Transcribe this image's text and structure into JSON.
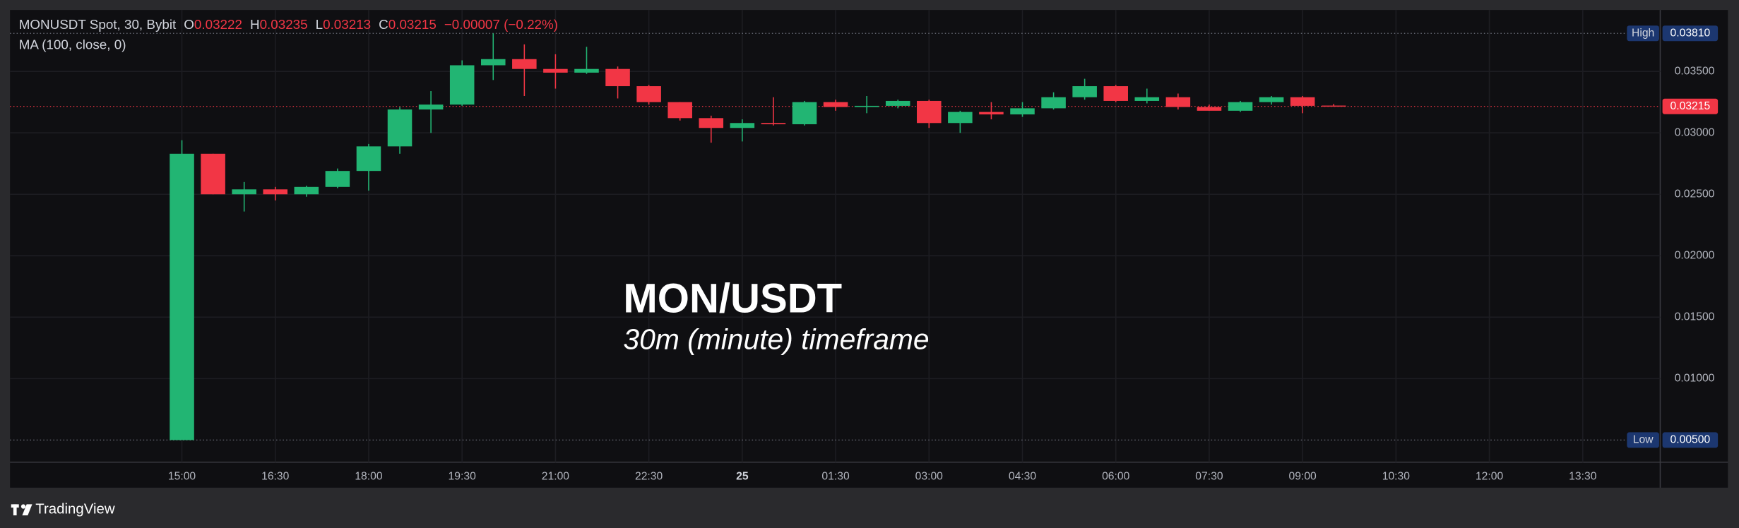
{
  "chart_data": {
    "type": "candlestick",
    "header": {
      "symbol": "MONUSDT Spot, 30, Bybit",
      "ohlc": [
        {
          "label": "O",
          "value": "0.03222"
        },
        {
          "label": "H",
          "value": "0.03235"
        },
        {
          "label": "L",
          "value": "0.03213"
        },
        {
          "label": "C",
          "value": "0.03215"
        }
      ],
      "change": "−0.00007 (−0.22%)",
      "indicator": "MA (100, close, 0)"
    },
    "annotation": {
      "title": "MON/USDT",
      "subtitle": "30m (minute) timeframe"
    },
    "xticks": [
      "15:00",
      "16:30",
      "18:00",
      "19:30",
      "21:00",
      "22:30",
      "25",
      "01:30",
      "03:00",
      "04:30",
      "06:00",
      "07:30",
      "09:00",
      "10:30",
      "12:00",
      "13:30"
    ],
    "series": {
      "open": [
        0.005,
        0.0283,
        0.025,
        0.0254,
        0.025,
        0.0256,
        0.0269,
        0.0289,
        0.0319,
        0.0323,
        0.0355,
        0.036,
        0.0352,
        0.0349,
        0.0352,
        0.0338,
        0.0325,
        0.0312,
        0.0304,
        0.0308,
        0.0307,
        0.0325,
        0.0321,
        0.0322,
        0.0326,
        0.0308,
        0.0317,
        0.0315,
        0.032,
        0.0329,
        0.0338,
        0.0326,
        0.0329,
        0.0321,
        0.0318,
        0.0325,
        0.0329,
        0.03222
      ],
      "high": [
        0.0294,
        0.0283,
        0.026,
        0.0256,
        0.0257,
        0.0271,
        0.0291,
        0.0321,
        0.0334,
        0.0359,
        0.0381,
        0.0372,
        0.0364,
        0.037,
        0.0354,
        0.0339,
        0.0325,
        0.0314,
        0.0311,
        0.0329,
        0.0326,
        0.0327,
        0.033,
        0.0327,
        0.0327,
        0.0318,
        0.0325,
        0.0325,
        0.0333,
        0.0344,
        0.0339,
        0.0336,
        0.0332,
        0.0323,
        0.0326,
        0.033,
        0.033,
        0.03235
      ],
      "low": [
        0.005,
        0.025,
        0.0236,
        0.0245,
        0.0248,
        0.0255,
        0.0253,
        0.0283,
        0.03,
        0.0322,
        0.0343,
        0.033,
        0.0336,
        0.0348,
        0.0328,
        0.0323,
        0.031,
        0.0292,
        0.0293,
        0.0306,
        0.0306,
        0.0318,
        0.0316,
        0.032,
        0.0304,
        0.03,
        0.0311,
        0.0313,
        0.0319,
        0.0327,
        0.0325,
        0.0324,
        0.0319,
        0.0318,
        0.0317,
        0.0323,
        0.0316,
        0.03213
      ],
      "close": [
        0.0283,
        0.025,
        0.0254,
        0.025,
        0.0256,
        0.0269,
        0.0289,
        0.0319,
        0.0323,
        0.0355,
        0.036,
        0.0352,
        0.0349,
        0.0352,
        0.0338,
        0.0325,
        0.0312,
        0.0304,
        0.0308,
        0.0307,
        0.0325,
        0.0321,
        0.0322,
        0.0326,
        0.0308,
        0.0317,
        0.0315,
        0.032,
        0.0329,
        0.0338,
        0.0326,
        0.0329,
        0.0321,
        0.0318,
        0.0325,
        0.0329,
        0.0322,
        0.03215
      ]
    },
    "up_color": "#22b573",
    "down_color": "#f23645",
    "ylim": [
      0.0032,
      0.04
    ],
    "yticks": [
      {
        "value": 0.035,
        "label": "0.03500"
      },
      {
        "value": 0.03,
        "label": "0.03000"
      },
      {
        "value": 0.025,
        "label": "0.02500"
      },
      {
        "value": 0.02,
        "label": "0.02000"
      },
      {
        "value": 0.015,
        "label": "0.01500"
      },
      {
        "value": 0.01,
        "label": "0.01000"
      }
    ],
    "grid": true,
    "markers": {
      "high": {
        "label": "High",
        "value": 0.0381,
        "value_label": "0.03810"
      },
      "low": {
        "label": "Low",
        "value": 0.005,
        "value_label": "0.00500"
      },
      "last": {
        "value": 0.03215,
        "value_label": "0.03215"
      }
    },
    "brand": "TradingView"
  }
}
